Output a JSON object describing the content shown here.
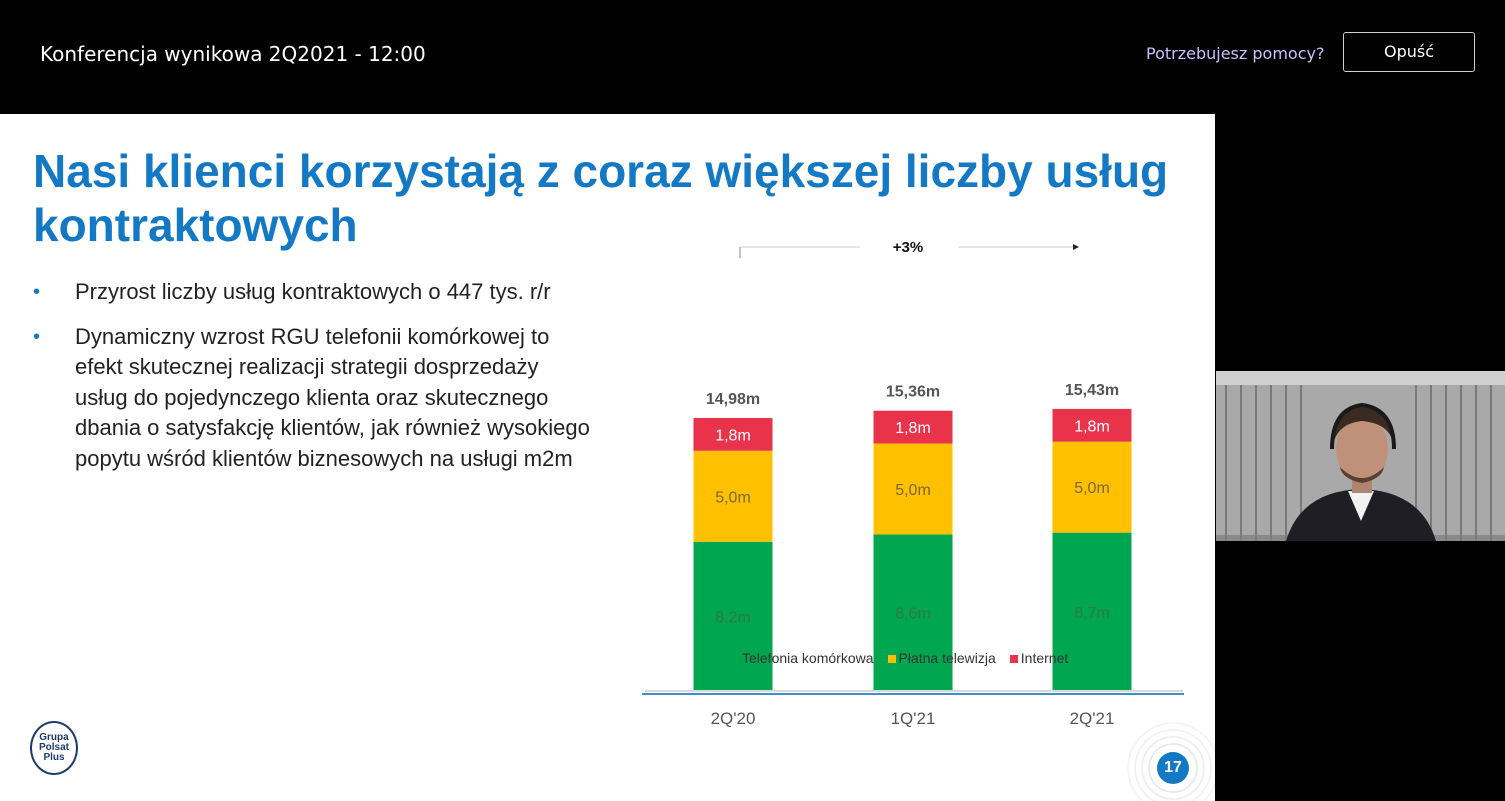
{
  "meeting": {
    "title": "Konferencja wynikowa 2Q2021 - 12:00",
    "help_link": "Potrzebujesz pomocy?",
    "leave_button": "Opuść"
  },
  "slide": {
    "title": "Nasi klienci korzystają z coraz większej liczby usług kontraktowych",
    "bullets": [
      "Przyrost liczby usług kontraktowych o 447 tys. r/r",
      "Dynamiczny wzrost RGU telefonii komórkowej to efekt skutecznej realizacji strategii dosprzedaży usług do pojedynczego klienta oraz skutecznego dbania o satysfakcję klientów, jak również wysokiego popytu wśród klientów biznesowych na usługi m2m"
    ],
    "bullet_symbol": "•",
    "logo_text": "Grupa Polsat Plus",
    "page_number": "17"
  },
  "chart_data": {
    "type": "bar",
    "stacked": true,
    "categories": [
      "2Q'20",
      "1Q'21",
      "2Q'21"
    ],
    "series": [
      {
        "name": "Telefonia komórkowa",
        "values": [
          8.2,
          8.6,
          8.7
        ],
        "labels": [
          "8,2m",
          "8,6m",
          "8,7m"
        ],
        "color": "#00a650"
      },
      {
        "name": "Płatna telewizja",
        "values": [
          5.0,
          5.0,
          5.0
        ],
        "labels": [
          "5,0m",
          "5,0m",
          "5,0m"
        ],
        "color": "#ffc000"
      },
      {
        "name": "Internet",
        "values": [
          1.8,
          1.8,
          1.8
        ],
        "labels": [
          "1,8m",
          "1,8m",
          "1,8m"
        ],
        "color": "#e8334a"
      }
    ],
    "totals": [
      "14,98m",
      "15,36m",
      "15,43m"
    ],
    "total_values": [
      14.98,
      15.36,
      15.43
    ],
    "growth_label": "+3%",
    "legend_position": "bottom",
    "ylim": [
      0,
      15.5
    ]
  },
  "colors": {
    "accent": "#1479c4",
    "topbar_bg": "#000000",
    "help_link": "#c7c2ff"
  },
  "icons": {
    "logo": "polsat-logo",
    "video": "participant-video"
  }
}
